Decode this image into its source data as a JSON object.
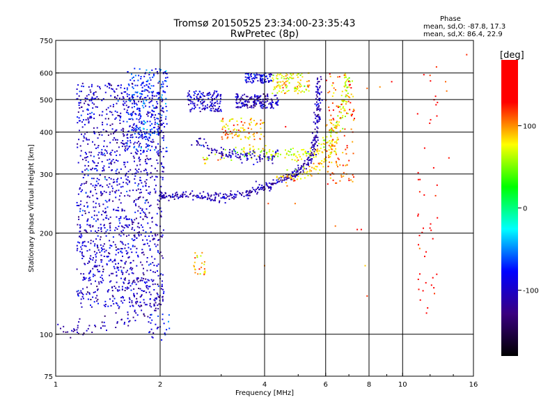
{
  "header": {
    "title": "Tromsø 20150525 23:34:00-23:35:43",
    "subtitle": "RwPretec (8p)"
  },
  "phase_stats": {
    "heading": "Phase",
    "line_o": "mean, sd,O: -87.8, 17.3",
    "line_x": "mean, sd,X: 86.4, 22.9"
  },
  "chart_data": {
    "type": "scatter",
    "title": "Tromsø 20150525 23:34:00-23:35:43",
    "subtitle": "RwPretec (8p)",
    "xlabel": "Frequency [MHz]",
    "ylabel": "Stationary phase Virtual Height [km]",
    "x_scale": "log",
    "y_scale": "log",
    "xlim": [
      1,
      16
    ],
    "ylim": [
      75,
      750
    ],
    "x_ticks": [
      1,
      2,
      4,
      6,
      8,
      10,
      16
    ],
    "x_tick_labels": [
      "1",
      "2",
      "4",
      "6",
      "8",
      "10",
      "16"
    ],
    "y_ticks": [
      75,
      100,
      200,
      300,
      400,
      500,
      600,
      750
    ],
    "y_tick_labels": [
      "75",
      "100",
      "200",
      "300",
      "400",
      "500",
      "600",
      "750"
    ],
    "grid": true,
    "colorbar": {
      "label": "[deg]",
      "range": [
        -180,
        180
      ],
      "ticks": [
        -100,
        0,
        100
      ],
      "tick_labels": [
        "-100",
        "0",
        "100"
      ],
      "colormap": "rainbow",
      "colors": [
        "#000000",
        "#3a0080",
        "#0000ff",
        "#00ffff",
        "#00ff00",
        "#ffff00",
        "#ff0000",
        "#ff0000"
      ]
    },
    "clusters": [
      {
        "name": "",
        "kind": "curve",
        "x": [
          1.0,
          1.15,
          1.3,
          1.45,
          1.6,
          1.75,
          1.9,
          2.0
        ],
        "y": [
          102,
          104,
          106,
          108,
          112,
          116,
          120,
          125
        ],
        "phase": -110,
        "n": 70,
        "sx": 0.02,
        "sy": 0.03
      },
      {
        "name": "",
        "kind": "blob",
        "x": [
          1.15,
          2.05
        ],
        "y": [
          120,
          560
        ],
        "phase": -100,
        "n": 1400
      },
      {
        "name": "",
        "kind": "blob",
        "x": [
          1.6,
          2.1
        ],
        "y": [
          350,
          620
        ],
        "phase": -70,
        "n": 250
      },
      {
        "name": "",
        "kind": "curve",
        "x": [
          2.0,
          2.3,
          2.7,
          3.2,
          3.8,
          4.3,
          4.9,
          5.4,
          5.6,
          5.7,
          5.75
        ],
        "y": [
          258,
          260,
          255,
          258,
          268,
          283,
          300,
          330,
          380,
          460,
          580
        ],
        "phase": -110,
        "n": 420,
        "sx": 0.012,
        "sy": 0.015
      },
      {
        "name": "",
        "kind": "curve",
        "x": [
          2.6,
          3.1,
          3.7,
          4.3,
          5.0,
          5.6,
          6.2,
          6.6,
          6.9,
          7.0
        ],
        "y": [
          330,
          345,
          350,
          345,
          340,
          350,
          380,
          440,
          520,
          610
        ],
        "phase": 70,
        "n": 220,
        "sx": 0.015,
        "sy": 0.02
      },
      {
        "name": "",
        "kind": "curve",
        "x": [
          2.5,
          2.9,
          3.3,
          3.8,
          4.4
        ],
        "y": [
          375,
          350,
          340,
          335,
          340
        ],
        "phase": -105,
        "n": 110,
        "sx": 0.012,
        "sy": 0.02
      },
      {
        "name": "",
        "kind": "curve",
        "x": [
          4.4,
          5.0,
          5.6,
          6.1,
          6.5
        ],
        "y": [
          290,
          295,
          310,
          340,
          380
        ],
        "phase": 85,
        "n": 90,
        "sx": 0.012,
        "sy": 0.02
      },
      {
        "name": "",
        "kind": "blob",
        "x": [
          2.4,
          3.0
        ],
        "y": [
          460,
          530
        ],
        "phase": -100,
        "n": 140
      },
      {
        "name": "",
        "kind": "blob",
        "x": [
          3.3,
          4.4
        ],
        "y": [
          470,
          520
        ],
        "phase": -105,
        "n": 160
      },
      {
        "name": "",
        "kind": "blob",
        "x": [
          3.5,
          4.2
        ],
        "y": [
          560,
          600
        ],
        "phase": -90,
        "n": 80
      },
      {
        "name": "",
        "kind": "blob",
        "x": [
          4.2,
          5.4
        ],
        "y": [
          520,
          600
        ],
        "phase": 80,
        "n": 110
      },
      {
        "name": "",
        "kind": "blob",
        "x": [
          3.0,
          4.0
        ],
        "y": [
          380,
          440
        ],
        "phase": 95,
        "n": 90
      },
      {
        "name": "",
        "kind": "blob",
        "x": [
          2.5,
          2.7
        ],
        "y": [
          150,
          175
        ],
        "phase": 95,
        "n": 25
      },
      {
        "name": "",
        "kind": "blob",
        "x": [
          1.85,
          2.15
        ],
        "y": [
          96,
          115
        ],
        "phase": -90,
        "n": 30
      },
      {
        "name": "",
        "kind": "blob",
        "x": [
          6.0,
          7.3
        ],
        "y": [
          280,
          600
        ],
        "phase": 110,
        "n": 120
      },
      {
        "name": "",
        "kind": "blob",
        "x": [
          11.0,
          12.6
        ],
        "y": [
          110,
          640
        ],
        "phase": 150,
        "n": 45
      },
      {
        "name": "",
        "kind": "points",
        "x": [
          7.9,
          7.6,
          7.4,
          8.6,
          9.3,
          15.3,
          12.0,
          7.8,
          7.9,
          5.0,
          4.0,
          4.1,
          13.6,
          4.6,
          4.9,
          13.3,
          6.4,
          13.4,
          12.6,
          11.2
        ],
        "y": [
          540,
          205,
          205,
          545,
          565,
          680,
          590,
          160,
          130,
          330,
          160,
          245,
          335,
          415,
          245,
          565,
          210,
          530,
          490,
          180
        ],
        "phase": 120,
        "n": 20
      }
    ]
  }
}
